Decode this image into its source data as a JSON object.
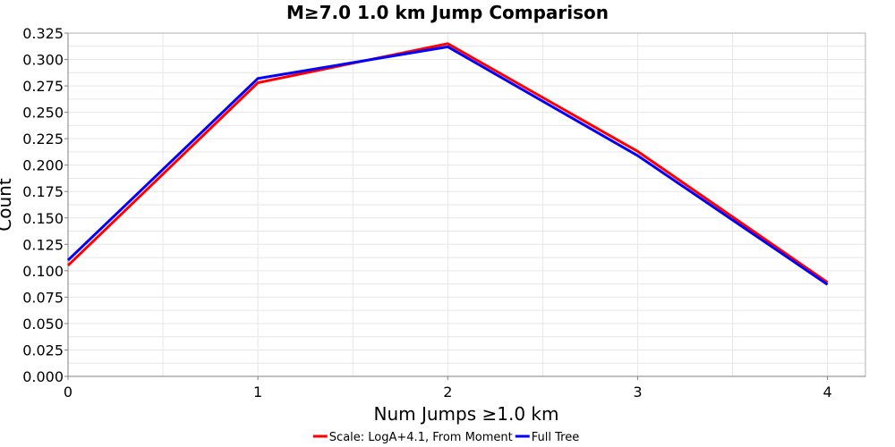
{
  "chart_data": {
    "type": "line",
    "title": "M≥7.0 1.0 km Jump Comparison",
    "xlabel": "Num Jumps ≥1.0 km",
    "ylabel": "Count",
    "xlim": [
      0,
      4.2
    ],
    "ylim": [
      0.0,
      0.325
    ],
    "x_ticks": [
      0,
      1,
      2,
      3,
      4
    ],
    "y_ticks": [
      0.0,
      0.025,
      0.05,
      0.075,
      0.1,
      0.125,
      0.15,
      0.175,
      0.2,
      0.225,
      0.25,
      0.275,
      0.3,
      0.325
    ],
    "y_tick_labels": [
      "0.000",
      "0.025",
      "0.050",
      "0.075",
      "0.100",
      "0.125",
      "0.150",
      "0.175",
      "0.200",
      "0.225",
      "0.250",
      "0.275",
      "0.300",
      "0.325"
    ],
    "x_tick_labels": [
      "0",
      "1",
      "2",
      "3",
      "4"
    ],
    "grid": true,
    "legend_position": "bottom-center",
    "series": [
      {
        "name": "Scale: LogA+4.1, From Moment",
        "color": "#ff0000",
        "x": [
          0,
          1,
          2,
          3,
          4
        ],
        "y": [
          0.105,
          0.278,
          0.315,
          0.213,
          0.089
        ]
      },
      {
        "name": "Full Tree",
        "color": "#0000ff",
        "x": [
          0,
          1,
          2,
          3,
          4
        ],
        "y": [
          0.11,
          0.282,
          0.312,
          0.209,
          0.087
        ]
      }
    ]
  }
}
